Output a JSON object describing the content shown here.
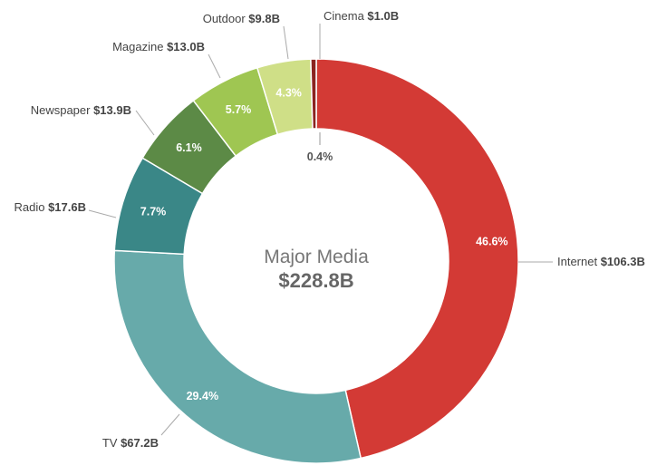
{
  "chart_data": {
    "type": "pie",
    "center_title": "Major Media",
    "center_total": "$228.8B",
    "slices": [
      {
        "name": "Internet",
        "value_label": "$106.3B",
        "value": 106.3,
        "percent_label": "46.6%",
        "color": "#d33a35",
        "pct_color": "#ffffff"
      },
      {
        "name": "TV",
        "value_label": "$67.2B",
        "value": 67.2,
        "percent_label": "29.4%",
        "color": "#67aaaa",
        "pct_color": "#ffffff"
      },
      {
        "name": "Radio",
        "value_label": "$17.6B",
        "value": 17.6,
        "percent_label": "7.7%",
        "color": "#3a8787",
        "pct_color": "#ffffff"
      },
      {
        "name": "Newspaper",
        "value_label": "$13.9B",
        "value": 13.9,
        "percent_label": "6.1%",
        "color": "#5c8a46",
        "pct_color": "#ffffff"
      },
      {
        "name": "Magazine",
        "value_label": "$13.0B",
        "value": 13.0,
        "percent_label": "5.7%",
        "color": "#9fc652",
        "pct_color": "#ffffff"
      },
      {
        "name": "Outdoor",
        "value_label": "$9.8B",
        "value": 9.8,
        "percent_label": "4.3%",
        "color": "#cfdf87",
        "pct_color": "#ffffff"
      },
      {
        "name": "Cinema",
        "value_label": "$1.0B",
        "value": 1.0,
        "percent_label": "0.4%",
        "color": "#8b2320",
        "pct_color": "#555555"
      }
    ]
  }
}
